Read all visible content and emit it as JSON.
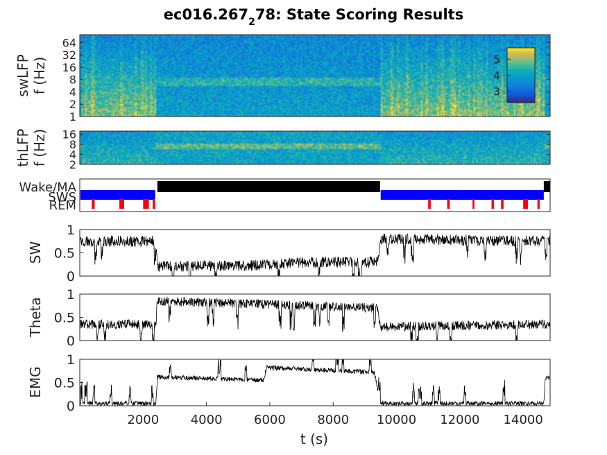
{
  "figure": {
    "title_main": "ec016.267",
    "title_sub": "2",
    "title_rest": "78: State Scoring Results"
  },
  "chart_data": [
    {
      "type": "heatmap",
      "id": "swlfp",
      "ylabel_line1": "swLFP",
      "ylabel_line2": "f (Hz)",
      "yscale": "log",
      "ylim": [
        1,
        100
      ],
      "yticks": [
        1,
        2,
        4,
        8,
        16,
        32,
        64
      ],
      "ytick_labels": [
        "1",
        "2",
        "4",
        "8",
        "16",
        "32",
        "64"
      ],
      "xlim": [
        0,
        14850
      ],
      "colorbar": {
        "ticks": [
          3,
          4,
          5
        ],
        "tick_labels": [
          "3",
          "4",
          "5"
        ],
        "range": [
          2.3,
          5.7
        ],
        "location": "top-right-inside"
      }
    },
    {
      "type": "heatmap",
      "id": "thlfp",
      "ylabel_line1": "thLFP",
      "ylabel_line2": "f (Hz)",
      "yscale": "log",
      "ylim": [
        2,
        20
      ],
      "yticks": [
        2,
        4,
        8,
        16
      ],
      "ytick_labels": [
        "2",
        "4",
        "8",
        "16"
      ],
      "xlim": [
        0,
        14850
      ]
    },
    {
      "type": "state",
      "id": "states",
      "categories": [
        "Wake/MA",
        "SWS",
        "REM"
      ],
      "colors": {
        "Wake/MA": "#000000",
        "SWS": "#0000ff",
        "REM": "#ff0000"
      },
      "xlim": [
        0,
        14850
      ],
      "segments": [
        {
          "state": "SWS",
          "start": 20,
          "end": 2380
        },
        {
          "state": "REM",
          "start": 380,
          "end": 470
        },
        {
          "state": "REM",
          "start": 1250,
          "end": 1400
        },
        {
          "state": "REM",
          "start": 2000,
          "end": 2180
        },
        {
          "state": "REM",
          "start": 2300,
          "end": 2380
        },
        {
          "state": "Wake/MA",
          "start": 2450,
          "end": 9480
        },
        {
          "state": "SWS",
          "start": 9500,
          "end": 14650
        },
        {
          "state": "REM",
          "start": 11000,
          "end": 11080
        },
        {
          "state": "REM",
          "start": 11600,
          "end": 11680
        },
        {
          "state": "REM",
          "start": 12400,
          "end": 12460
        },
        {
          "state": "REM",
          "start": 13000,
          "end": 13080
        },
        {
          "state": "REM",
          "start": 13300,
          "end": 13380
        },
        {
          "state": "REM",
          "start": 14000,
          "end": 14150
        },
        {
          "state": "REM",
          "start": 14450,
          "end": 14520
        },
        {
          "state": "Wake/MA",
          "start": 14650,
          "end": 14850
        }
      ]
    },
    {
      "type": "line",
      "id": "sw",
      "ylabel": "SW",
      "ylim": [
        0,
        1
      ],
      "yticks": [
        0,
        0.5,
        1
      ],
      "ytick_labels": [
        "0",
        "0.5",
        "1"
      ],
      "xlim": [
        0,
        14850
      ],
      "levels": [
        [
          0,
          0.75
        ],
        [
          2400,
          0.75
        ],
        [
          2450,
          0.2
        ],
        [
          5000,
          0.22
        ],
        [
          7500,
          0.3
        ],
        [
          9400,
          0.3
        ],
        [
          9500,
          0.8
        ],
        [
          14850,
          0.75
        ]
      ],
      "noise": 0.12
    },
    {
      "type": "line",
      "id": "theta",
      "ylabel": "Theta",
      "ylim": [
        0,
        1
      ],
      "yticks": [
        0,
        0.5,
        1
      ],
      "ytick_labels": [
        "0",
        "0.5",
        "1"
      ],
      "xlim": [
        0,
        14850
      ],
      "levels": [
        [
          0,
          0.35
        ],
        [
          2400,
          0.35
        ],
        [
          2450,
          0.85
        ],
        [
          6000,
          0.78
        ],
        [
          9400,
          0.7
        ],
        [
          9500,
          0.3
        ],
        [
          14850,
          0.35
        ]
      ],
      "noise": 0.1
    },
    {
      "type": "line",
      "id": "emg",
      "ylabel": "EMG",
      "ylim": [
        0,
        1
      ],
      "yticks": [
        0,
        0.5,
        1
      ],
      "ytick_labels": [
        "0",
        "0.5",
        "1"
      ],
      "xlim": [
        0,
        14850
      ],
      "xlabel": "t (s)",
      "xticks": [
        2000,
        4000,
        6000,
        8000,
        10000,
        12000,
        14000
      ],
      "xtick_labels": [
        "2000",
        "4000",
        "6000",
        "8000",
        "10000",
        "12000",
        "14000"
      ],
      "levels": [
        [
          0,
          0.05
        ],
        [
          2400,
          0.05
        ],
        [
          2450,
          0.62
        ],
        [
          5800,
          0.55
        ],
        [
          5900,
          0.82
        ],
        [
          9300,
          0.72
        ],
        [
          9500,
          0.05
        ],
        [
          14650,
          0.05
        ],
        [
          14700,
          0.6
        ],
        [
          14850,
          0.6
        ]
      ],
      "noise": 0.05
    }
  ]
}
